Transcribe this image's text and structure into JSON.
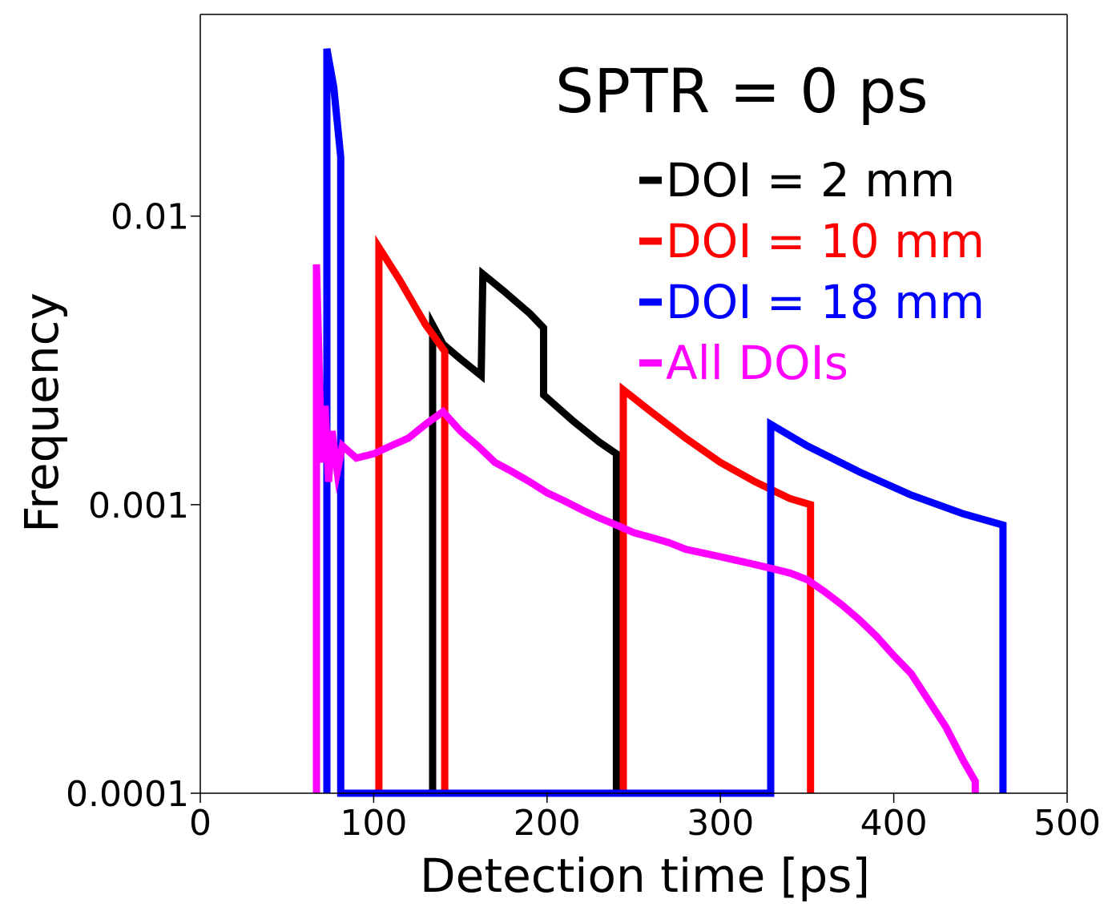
{
  "chart_data": {
    "type": "line",
    "title": "SPTR = 0 ps",
    "xlabel": "Detection time [ps]",
    "ylabel": "Frequency",
    "xlim": [
      0,
      500
    ],
    "ylim": [
      0.0001,
      0.05
    ],
    "yscale": "log",
    "xticks": [
      0,
      100,
      200,
      300,
      400,
      500
    ],
    "xtick_labels": [
      "0",
      "100",
      "200",
      "300",
      "400",
      "500"
    ],
    "yticks": [
      0.0001,
      0.001,
      0.01
    ],
    "ytick_labels": [
      "0.0001",
      "0.001",
      "0.01"
    ],
    "legend_position": "top-right",
    "series": [
      {
        "name": "DOI = 2 mm",
        "color": "#000000",
        "points": [
          [
            134,
            0.0001
          ],
          [
            134,
            0.0042
          ],
          [
            140,
            0.0036
          ],
          [
            150,
            0.0032
          ],
          [
            162,
            0.0028
          ],
          [
            163,
            0.0063
          ],
          [
            175,
            0.0055
          ],
          [
            190,
            0.0046
          ],
          [
            198,
            0.0041
          ],
          [
            198,
            0.0024
          ],
          [
            215,
            0.00195
          ],
          [
            230,
            0.00165
          ],
          [
            240,
            0.0015
          ],
          [
            240,
            0.0001
          ]
        ]
      },
      {
        "name": "DOI = 10 mm",
        "color": "#ff0000",
        "points": [
          [
            103,
            0.0001
          ],
          [
            103,
            0.0078
          ],
          [
            115,
            0.006
          ],
          [
            130,
            0.0042
          ],
          [
            141,
            0.0034
          ],
          [
            141,
            0.0001
          ],
          [
            244,
            0.0001
          ],
          [
            244,
            0.0025
          ],
          [
            260,
            0.0021
          ],
          [
            280,
            0.0017
          ],
          [
            300,
            0.0014
          ],
          [
            320,
            0.0012
          ],
          [
            340,
            0.00105
          ],
          [
            352,
            0.001
          ],
          [
            352,
            0.0001
          ]
        ]
      },
      {
        "name": "DOI = 18 mm",
        "color": "#0000ff",
        "points": [
          [
            73,
            0.0001
          ],
          [
            73,
            0.038
          ],
          [
            77,
            0.028
          ],
          [
            81,
            0.016
          ],
          [
            81,
            0.0001
          ],
          [
            329,
            0.0001
          ],
          [
            329,
            0.0019
          ],
          [
            350,
            0.0016
          ],
          [
            380,
            0.0013
          ],
          [
            410,
            0.00108
          ],
          [
            440,
            0.00093
          ],
          [
            463,
            0.00085
          ],
          [
            463,
            0.0001
          ]
        ]
      },
      {
        "name": "All DOIs",
        "color": "#ff00ff",
        "points": [
          [
            67,
            0.0001
          ],
          [
            67,
            0.0068
          ],
          [
            70,
            0.0014
          ],
          [
            72,
            0.0022
          ],
          [
            74,
            0.0012
          ],
          [
            76,
            0.0018
          ],
          [
            79,
            0.0013
          ],
          [
            82,
            0.0016
          ],
          [
            90,
            0.00145
          ],
          [
            100,
            0.0015
          ],
          [
            110,
            0.0016
          ],
          [
            120,
            0.0017
          ],
          [
            130,
            0.0019
          ],
          [
            140,
            0.0021
          ],
          [
            150,
            0.0018
          ],
          [
            160,
            0.0016
          ],
          [
            170,
            0.0014
          ],
          [
            180,
            0.0013
          ],
          [
            190,
            0.0012
          ],
          [
            200,
            0.0011
          ],
          [
            210,
            0.00103
          ],
          [
            220,
            0.00096
          ],
          [
            230,
            0.0009
          ],
          [
            240,
            0.00085
          ],
          [
            250,
            0.0008
          ],
          [
            260,
            0.00077
          ],
          [
            270,
            0.00074
          ],
          [
            280,
            0.0007
          ],
          [
            290,
            0.00068
          ],
          [
            300,
            0.00066
          ],
          [
            310,
            0.00064
          ],
          [
            320,
            0.00062
          ],
          [
            330,
            0.0006
          ],
          [
            340,
            0.00058
          ],
          [
            350,
            0.00055
          ],
          [
            360,
            0.0005
          ],
          [
            370,
            0.00045
          ],
          [
            380,
            0.0004
          ],
          [
            390,
            0.00035
          ],
          [
            400,
            0.0003
          ],
          [
            410,
            0.00026
          ],
          [
            420,
            0.00021
          ],
          [
            430,
            0.00017
          ],
          [
            440,
            0.00013
          ],
          [
            447,
            0.00011
          ],
          [
            447,
            0.0001
          ]
        ]
      }
    ]
  }
}
